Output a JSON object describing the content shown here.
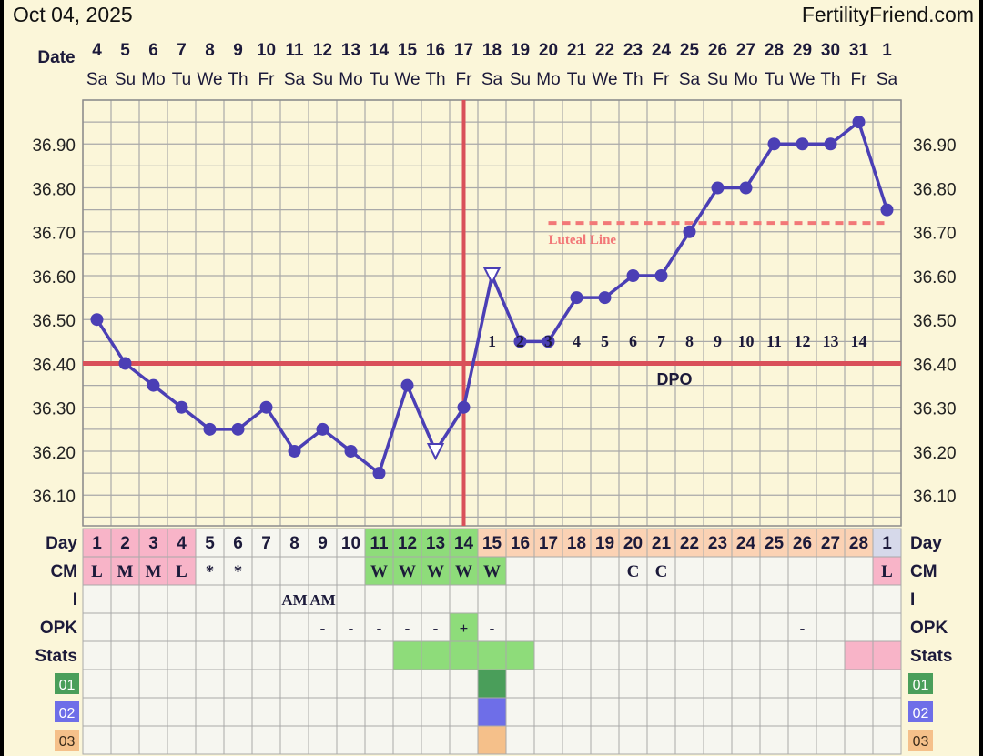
{
  "header": {
    "chart_date": "Oct 04, 2025",
    "site": "FertilityFriend.com"
  },
  "colors": {
    "background": "#fbf6d9",
    "grid": "#a9a9a9",
    "temp_line": "#4b3fb5",
    "coverline": "#d9505a",
    "ovulation_line": "#d9505a",
    "luteal_line": "#f27878",
    "row_label": "#1c1a3a",
    "cell_menses": "#f8b4c8",
    "cell_day_blue": "#d6d9ea",
    "cell_fertile": "#8edc7a",
    "cell_luteal": "#fbd2b4",
    "cell_white": "#f6f6f0",
    "badge_01": "#4a9e5a",
    "badge_02": "#6e6ee8",
    "badge_03": "#f5c08a"
  },
  "labels": {
    "date_label": "Date",
    "day_label": "Day",
    "cm_label": "CM",
    "i_label": "I",
    "opk_label": "OPK",
    "stats_label": "Stats",
    "dpo_label": "DPO",
    "luteal_label": "Luteal Line",
    "badge_01": "01",
    "badge_02": "02",
    "badge_03": "03"
  },
  "chart_data": {
    "type": "line",
    "x_dates": [
      "4",
      "5",
      "6",
      "7",
      "8",
      "9",
      "10",
      "11",
      "12",
      "13",
      "14",
      "15",
      "16",
      "17",
      "18",
      "19",
      "20",
      "21",
      "22",
      "23",
      "24",
      "25",
      "26",
      "27",
      "28",
      "29",
      "30",
      "31",
      "1"
    ],
    "x_weekdays": [
      "Sa",
      "Su",
      "Mo",
      "Tu",
      "We",
      "Th",
      "Fr",
      "Sa",
      "Su",
      "Mo",
      "Tu",
      "We",
      "Th",
      "Fr",
      "Sa",
      "Su",
      "Mo",
      "Tu",
      "We",
      "Th",
      "Fr",
      "Sa",
      "Su",
      "Mo",
      "Tu",
      "We",
      "Th",
      "Fr",
      "Sa"
    ],
    "y_ticks": [
      "36.90",
      "36.80",
      "36.70",
      "36.60",
      "36.50",
      "36.40",
      "36.30",
      "36.20",
      "36.10"
    ],
    "ylim": [
      36.03,
      37.0
    ],
    "series": [
      {
        "values": [
          36.5,
          36.4,
          36.35,
          36.3,
          36.25,
          36.25,
          36.3,
          36.2,
          36.25,
          36.2,
          36.15,
          36.35,
          36.2,
          36.3,
          36.6,
          36.45,
          36.45,
          36.55,
          36.55,
          36.6,
          36.6,
          36.7,
          36.8,
          36.8,
          36.9,
          36.9,
          36.9,
          36.95,
          36.75
        ],
        "open_markers": [
          12,
          14
        ]
      }
    ],
    "coverline": 36.4,
    "luteal_line": 36.72,
    "luteal_start_index": 16,
    "ovulation_index": 13,
    "dpo_numbers": [
      "1",
      "2",
      "3",
      "4",
      "5",
      "6",
      "7",
      "8",
      "9",
      "10",
      "11",
      "12",
      "13",
      "14"
    ],
    "dpo_start_index": 14
  },
  "table": {
    "cycle_days": [
      "1",
      "2",
      "3",
      "4",
      "5",
      "6",
      "7",
      "8",
      "9",
      "10",
      "11",
      "12",
      "13",
      "14",
      "15",
      "16",
      "17",
      "18",
      "19",
      "20",
      "21",
      "22",
      "23",
      "24",
      "25",
      "26",
      "27",
      "28",
      "1"
    ],
    "cycle_day_fills": [
      "menses",
      "menses",
      "menses",
      "menses",
      "white",
      "white",
      "white",
      "white",
      "white",
      "white",
      "fertile",
      "fertile",
      "fertile",
      "fertile",
      "luteal",
      "luteal",
      "luteal",
      "luteal",
      "luteal",
      "luteal",
      "luteal",
      "luteal",
      "luteal",
      "luteal",
      "luteal",
      "luteal",
      "luteal",
      "luteal",
      "day_blue"
    ],
    "cm": [
      "L",
      "M",
      "M",
      "L",
      "*",
      "*",
      "",
      "",
      "",
      "",
      "W",
      "W",
      "W",
      "W",
      "W",
      "",
      "",
      "",
      "",
      "C",
      "C",
      "",
      "",
      "",
      "",
      "",
      "",
      "",
      "L"
    ],
    "cm_fills": [
      "menses",
      "menses",
      "menses",
      "menses",
      "white",
      "white",
      "white",
      "white",
      "white",
      "white",
      "fertile",
      "fertile",
      "fertile",
      "fertile",
      "fertile",
      "white",
      "white",
      "white",
      "white",
      "white",
      "white",
      "white",
      "white",
      "white",
      "white",
      "white",
      "white",
      "white",
      "menses"
    ],
    "i": [
      "",
      "",
      "",
      "",
      "",
      "",
      "",
      "AM",
      "AM",
      "",
      "",
      "",
      "",
      "",
      "",
      "",
      "",
      "",
      "",
      "",
      "",
      "",
      "",
      "",
      "",
      "",
      "",
      "",
      ""
    ],
    "opk": [
      "",
      "",
      "",
      "",
      "",
      "",
      "",
      "",
      "-",
      "-",
      "-",
      "-",
      "-",
      "+",
      "-",
      "",
      "",
      "",
      "",
      "",
      "",
      "",
      "",
      "",
      "",
      "-",
      "",
      "",
      ""
    ],
    "opk_fills": [
      "white",
      "white",
      "white",
      "white",
      "white",
      "white",
      "white",
      "white",
      "white",
      "white",
      "white",
      "white",
      "white",
      "fertile",
      "white",
      "white",
      "white",
      "white",
      "white",
      "white",
      "white",
      "white",
      "white",
      "white",
      "white",
      "white",
      "white",
      "white",
      "white"
    ],
    "stats_fills": [
      "white",
      "white",
      "white",
      "white",
      "white",
      "white",
      "white",
      "white",
      "white",
      "white",
      "white",
      "fertile",
      "fertile",
      "fertile",
      "fertile",
      "fertile",
      "white",
      "white",
      "white",
      "white",
      "white",
      "white",
      "white",
      "white",
      "white",
      "white",
      "white",
      "menses",
      "menses"
    ],
    "row01_fills": [
      "white",
      "white",
      "white",
      "white",
      "white",
      "white",
      "white",
      "white",
      "white",
      "white",
      "white",
      "white",
      "white",
      "white",
      "badge_01",
      "white",
      "white",
      "white",
      "white",
      "white",
      "white",
      "white",
      "white",
      "white",
      "white",
      "white",
      "white",
      "white",
      "white"
    ],
    "row02_fills": [
      "white",
      "white",
      "white",
      "white",
      "white",
      "white",
      "white",
      "white",
      "white",
      "white",
      "white",
      "white",
      "white",
      "white",
      "badge_02",
      "white",
      "white",
      "white",
      "white",
      "white",
      "white",
      "white",
      "white",
      "white",
      "white",
      "white",
      "white",
      "white",
      "white"
    ],
    "row03_fills": [
      "white",
      "white",
      "white",
      "white",
      "white",
      "white",
      "white",
      "white",
      "white",
      "white",
      "white",
      "white",
      "white",
      "white",
      "badge_03",
      "white",
      "white",
      "white",
      "white",
      "white",
      "white",
      "white",
      "white",
      "white",
      "white",
      "white",
      "white",
      "white",
      "white"
    ]
  }
}
